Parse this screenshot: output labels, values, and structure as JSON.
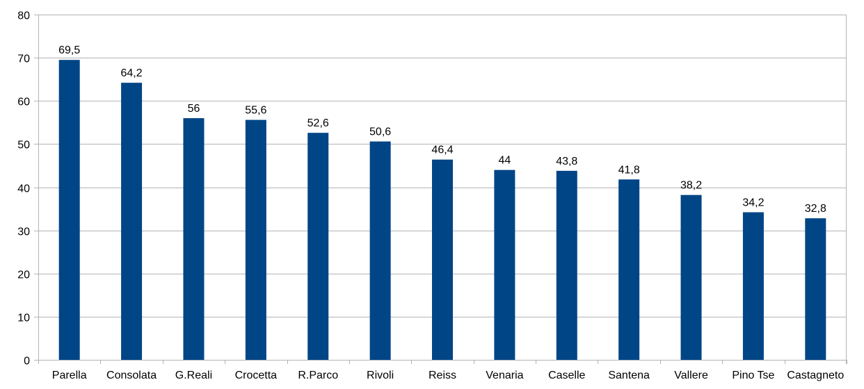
{
  "chart_data": {
    "type": "bar",
    "categories": [
      "Parella",
      "Consolata",
      "G.Reali",
      "Crocetta",
      "R.Parco",
      "Rivoli",
      "Reiss",
      "Venaria",
      "Caselle",
      "Santena",
      "Vallere",
      "Pino Tse",
      "Castagneto"
    ],
    "values": [
      69.5,
      64.2,
      56,
      55.6,
      52.6,
      50.6,
      46.4,
      44,
      43.8,
      41.8,
      38.2,
      34.2,
      32.8
    ],
    "data_labels": [
      "69,5",
      "64,2",
      "56",
      "55,6",
      "52,6",
      "50,6",
      "46,4",
      "44",
      "43,8",
      "41,8",
      "38,2",
      "34,2",
      "32,8"
    ],
    "y_ticks": [
      0,
      10,
      20,
      30,
      40,
      50,
      60,
      70,
      80
    ],
    "ylim": [
      0,
      80
    ],
    "grid": true,
    "bar_color": "#004586",
    "grid_color": "#b3b3b3"
  }
}
